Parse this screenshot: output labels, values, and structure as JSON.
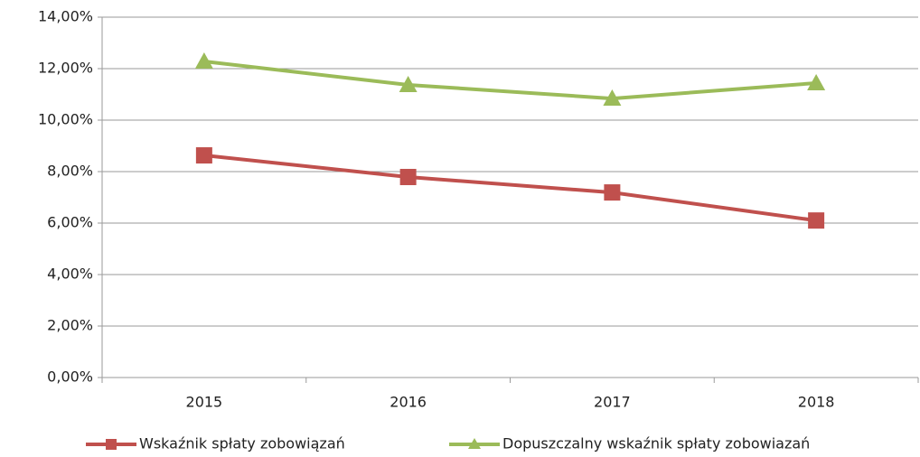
{
  "chart_data": {
    "type": "line",
    "categories": [
      "2015",
      "2016",
      "2017",
      "2018"
    ],
    "series": [
      {
        "name": "Wskaźnik spłaty zobowiązań",
        "color": "#c0504d",
        "marker": "square",
        "values": [
          8.63,
          7.79,
          7.19,
          6.1
        ]
      },
      {
        "name": "Dopuszczalny wskaźnik spłaty zobowiazań",
        "color": "#9bbb59",
        "marker": "triangle",
        "values": [
          12.28,
          11.37,
          10.84,
          11.44
        ]
      }
    ],
    "ylim": [
      0,
      14
    ],
    "yticks": [
      {
        "value": 0,
        "label": "0,00%"
      },
      {
        "value": 2,
        "label": "2,00%"
      },
      {
        "value": 4,
        "label": "4,00%"
      },
      {
        "value": 6,
        "label": "6,00%"
      },
      {
        "value": 8,
        "label": "8,00%"
      },
      {
        "value": 10,
        "label": "10,00%"
      },
      {
        "value": 12,
        "label": "12,00%"
      },
      {
        "value": 14,
        "label": "14,00%"
      }
    ],
    "grid": true,
    "legend": "bottom"
  }
}
